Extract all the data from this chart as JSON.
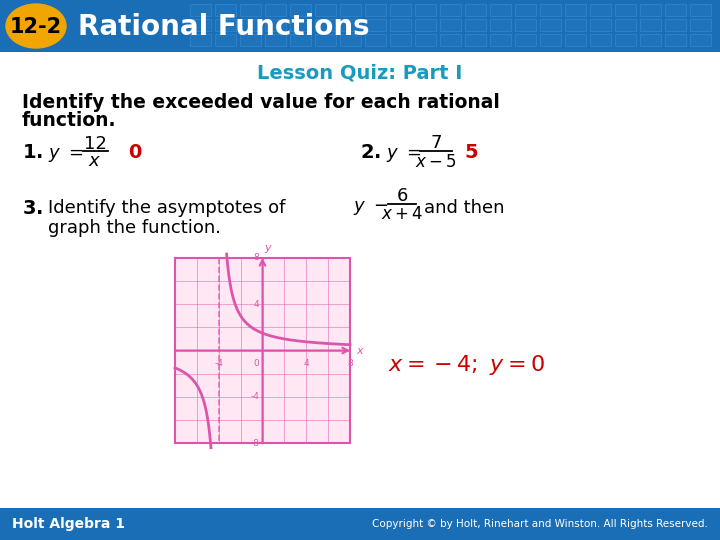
{
  "header_bg_color": "#1a6eb5",
  "header_text": "Rational Functions",
  "header_badge_color": "#f0a500",
  "header_badge_text": "12-2",
  "subtitle": "Lesson Quiz: Part I",
  "subtitle_color": "#1a9abf",
  "body_bg_color": "#ffffff",
  "footer_bg_color": "#1a6eb5",
  "footer_left": "Holt Algebra 1",
  "footer_right": "Copyright © by Holt, Rinehart and Winston. All Rights Reserved.",
  "q1_ans_color": "#cc0000",
  "q2_ans_color": "#cc0000",
  "ans3_color": "#cc0000",
  "graph_bg": "#ffe8f4",
  "graph_border": "#dd55aa",
  "graph_curve_color": "#dd55aa",
  "graph_axis_color": "#dd55aa",
  "graph_grid_color": "#dd55aa"
}
